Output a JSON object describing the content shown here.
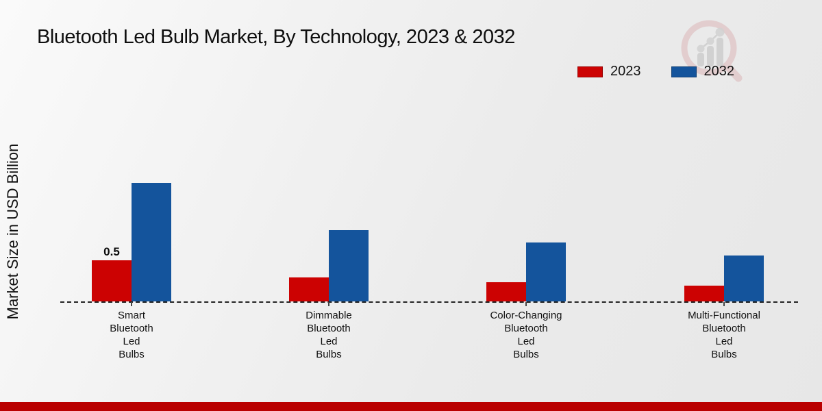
{
  "title": "Bluetooth Led Bulb Market, By Technology, 2023 & 2032",
  "y_axis_label": "Market Size in USD Billion",
  "legend": [
    {
      "label": "2023",
      "color": "#cc0202"
    },
    {
      "label": "2032",
      "color": "#14549c"
    }
  ],
  "colors": {
    "bar_2023": "#cc0202",
    "bar_2032": "#14549c",
    "axis_dash": "#222222",
    "footer_bar": "#b90000",
    "background": "#efefef",
    "text": "#111111",
    "watermark_ring": "#d8a8aa",
    "watermark_bars": "#c6c6c6"
  },
  "watermark": {
    "name": "market-research-logo-watermark"
  },
  "chart_data": {
    "type": "bar",
    "title": "Bluetooth Led Bulb Market, By Technology, 2023 & 2032",
    "xlabel": "",
    "ylabel": "Market Size in USD Billion",
    "categories": [
      "Smart Bluetooth Led Bulbs",
      "Dimmable Bluetooth Led Bulbs",
      "Color-Changing Bluetooth Led Bulbs",
      "Multi-Functional Bluetooth Led Bulbs"
    ],
    "category_labels_multiline": [
      "Smart\nBluetooth\nLed\nBulbs",
      "Dimmable\nBluetooth\nLed\nBulbs",
      "Color-Changing\nBluetooth\nLed\nBulbs",
      "Multi-Functional\nBluetooth\nLed\nBulbs"
    ],
    "series": [
      {
        "name": "2023",
        "color": "#cc0202",
        "values": [
          0.5,
          0.29,
          0.23,
          0.19
        ]
      },
      {
        "name": "2032",
        "color": "#14549c",
        "values": [
          1.44,
          0.87,
          0.72,
          0.56
        ]
      }
    ],
    "annotations": [
      {
        "series_index": 0,
        "category_index": 0,
        "text": "0.5"
      }
    ],
    "ylim": [
      0,
      1.6
    ],
    "grid": false,
    "y_ticks_visible": false,
    "x_axis_style": "dashed",
    "legend_position": "top-right"
  }
}
